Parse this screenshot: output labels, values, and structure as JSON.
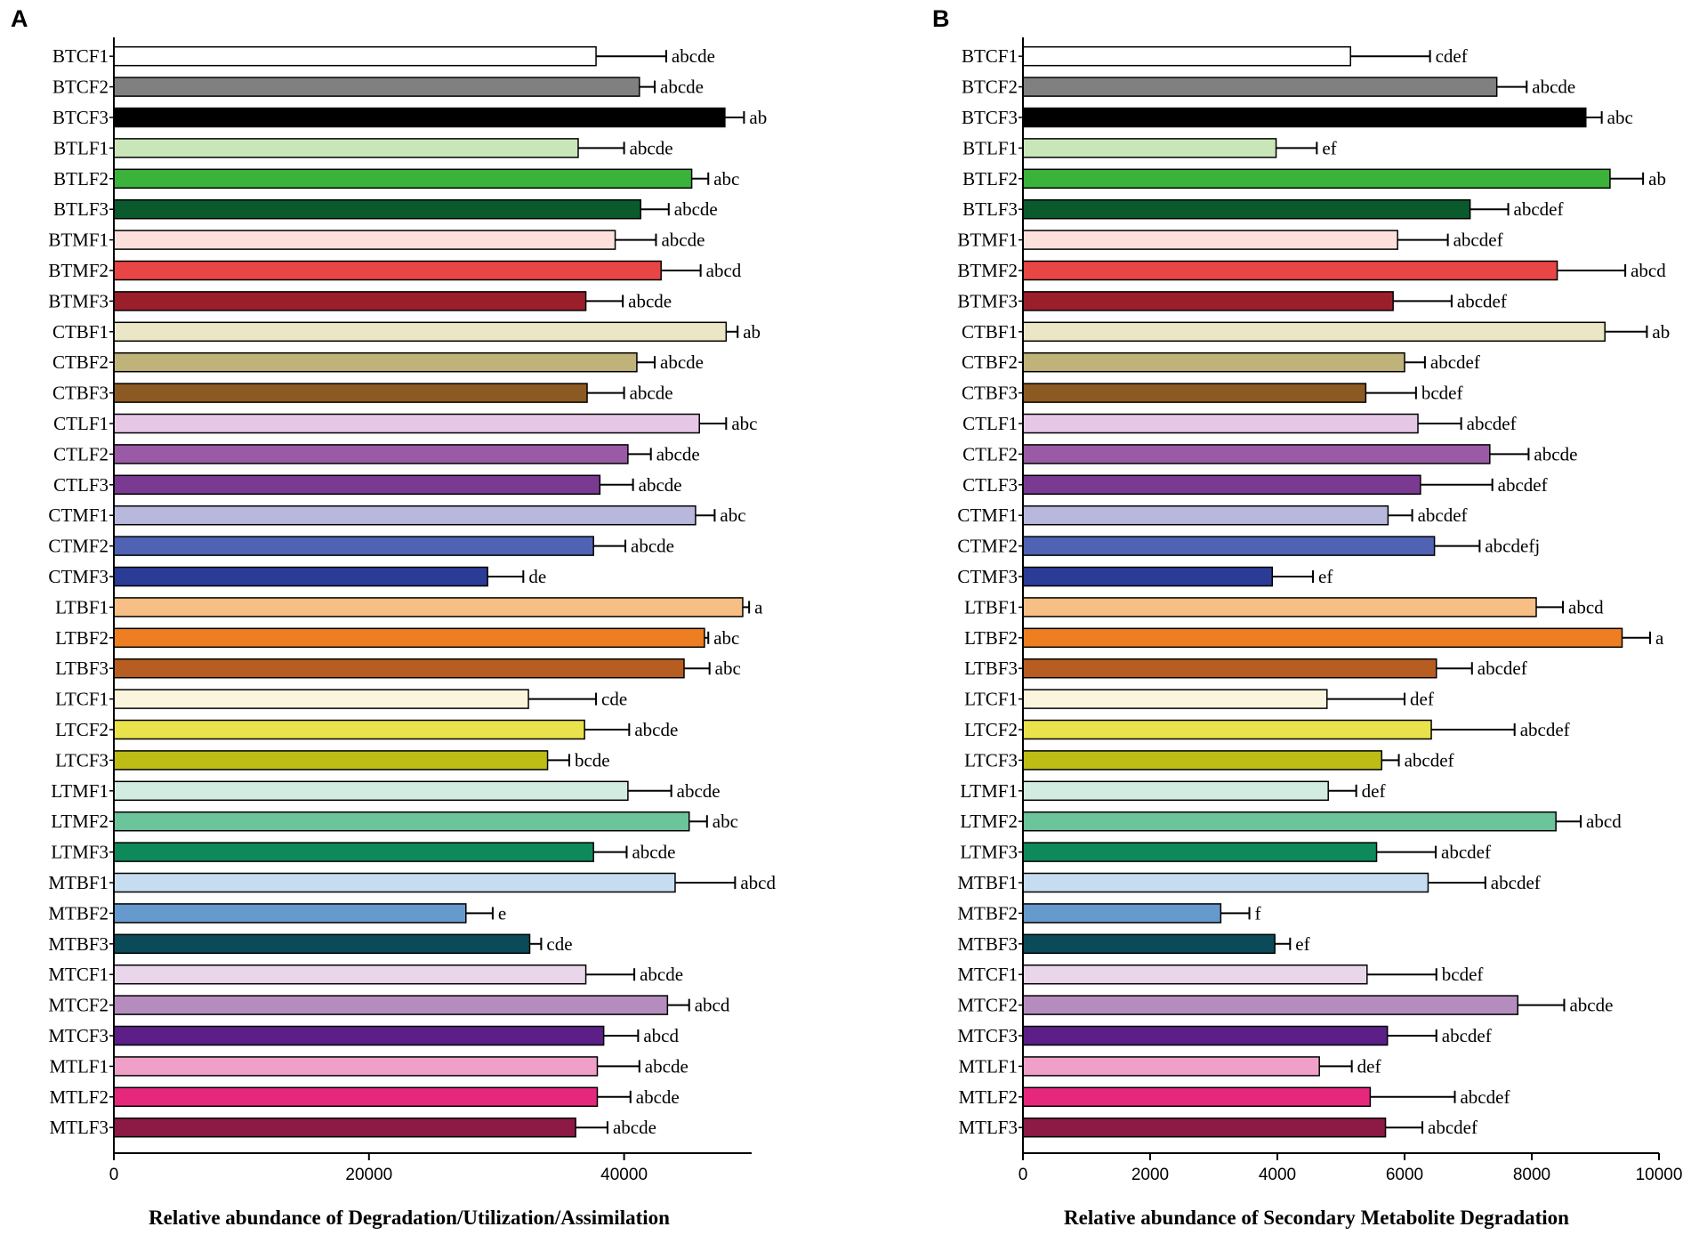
{
  "categories": [
    "BTCF1",
    "BTCF2",
    "BTCF3",
    "BTLF1",
    "BTLF2",
    "BTLF3",
    "BTMF1",
    "BTMF2",
    "BTMF3",
    "CTBF1",
    "CTBF2",
    "CTBF3",
    "CTLF1",
    "CTLF2",
    "CTLF3",
    "CTMF1",
    "CTMF2",
    "CTMF3",
    "LTBF1",
    "LTBF2",
    "LTBF3",
    "LTCF1",
    "LTCF2",
    "LTCF3",
    "LTMF1",
    "LTMF2",
    "LTMF3",
    "MTBF1",
    "MTBF2",
    "MTBF3",
    "MTCF1",
    "MTCF2",
    "MTCF3",
    "MTLF1",
    "MTLF2",
    "MTLF3"
  ],
  "colors": [
    "#ffffff",
    "#808080",
    "#000000",
    "#c8e6b8",
    "#3bb33b",
    "#0b5a2e",
    "#fde0dc",
    "#e84545",
    "#9a1f2b",
    "#ebe6c6",
    "#bfb37a",
    "#8b5a22",
    "#e6c8e6",
    "#9b5aa5",
    "#7b3a92",
    "#b8b8dc",
    "#5062b4",
    "#2a3c96",
    "#f7bf85",
    "#ee7e22",
    "#b85d21",
    "#faf5dc",
    "#e9e24a",
    "#bdbd15",
    "#d3ece2",
    "#6cc49a",
    "#0e8a5a",
    "#c6dcf0",
    "#6699cc",
    "#0b4a58",
    "#ead6ea",
    "#b48cbe",
    "#5c1f88",
    "#f0a0c8",
    "#e6287d",
    "#8c1a44"
  ],
  "chart_data": [
    {
      "type": "bar",
      "panel": "A",
      "orientation": "horizontal",
      "categories": [
        "BTCF1",
        "BTCF2",
        "BTCF3",
        "BTLF1",
        "BTLF2",
        "BTLF3",
        "BTMF1",
        "BTMF2",
        "BTMF3",
        "CTBF1",
        "CTBF2",
        "CTBF3",
        "CTLF1",
        "CTLF2",
        "CTLF3",
        "CTMF1",
        "CTMF2",
        "CTMF3",
        "LTBF1",
        "LTBF2",
        "LTBF3",
        "LTCF1",
        "LTCF2",
        "LTCF3",
        "LTMF1",
        "LTMF2",
        "LTMF3",
        "MTBF1",
        "MTBF2",
        "MTBF3",
        "MTCF1",
        "MTCF2",
        "MTCF3",
        "MTLF1",
        "MTLF2",
        "MTLF3"
      ],
      "values": [
        37800,
        41200,
        47900,
        36400,
        45300,
        41300,
        39300,
        42900,
        37000,
        48000,
        41000,
        37100,
        45900,
        40300,
        38100,
        45600,
        37600,
        29300,
        49300,
        46300,
        44700,
        32500,
        36900,
        34000,
        40300,
        45100,
        37600,
        44000,
        27600,
        32600,
        37000,
        43400,
        38400,
        37900,
        37900,
        36200
      ],
      "errors": [
        5500,
        1200,
        1500,
        3600,
        1300,
        2200,
        3200,
        3100,
        2900,
        900,
        1400,
        2900,
        2100,
        1800,
        2600,
        1500,
        2500,
        2800,
        500,
        300,
        2000,
        5300,
        3500,
        1700,
        3400,
        1400,
        2600,
        4700,
        2100,
        900,
        3800,
        1700,
        2700,
        3300,
        2600,
        2500
      ],
      "significance": [
        "abcde",
        "abcde",
        "ab",
        "abcde",
        "abc",
        "abcde",
        "abcde",
        "abcd",
        "abcde",
        "ab",
        "abcde",
        "abcde",
        "abc",
        "abcde",
        "abcde",
        "abc",
        "abcde",
        "de",
        "a",
        "abc",
        "abc",
        "cde",
        "abcde",
        "bcde",
        "abcde",
        "abc",
        "abcde",
        "abcd",
        "e",
        "cde",
        "abcde",
        "abcd",
        "abcd",
        "abcde",
        "abcde",
        "abcde"
      ],
      "xlim": [
        0,
        50000
      ],
      "xticks": [
        0,
        20000,
        40000
      ],
      "xticklabels": [
        "0",
        "20000",
        "40000"
      ],
      "xlabel": "Relative abundance of Degradation/Utilization/Assimilation"
    },
    {
      "type": "bar",
      "panel": "B",
      "orientation": "horizontal",
      "categories": [
        "BTCF1",
        "BTCF2",
        "BTCF3",
        "BTLF1",
        "BTLF2",
        "BTLF3",
        "BTMF1",
        "BTMF2",
        "BTMF3",
        "CTBF1",
        "CTBF2",
        "CTBF3",
        "CTLF1",
        "CTLF2",
        "CTLF3",
        "CTMF1",
        "CTMF2",
        "CTMF3",
        "LTBF1",
        "LTBF2",
        "LTBF3",
        "LTCF1",
        "LTCF2",
        "LTCF3",
        "LTMF1",
        "LTMF2",
        "LTMF3",
        "MTBF1",
        "MTBF2",
        "MTBF3",
        "MTCF1",
        "MTCF2",
        "MTCF3",
        "MTLF1",
        "MTLF2",
        "MTLF3"
      ],
      "values": [
        5150,
        7450,
        8850,
        3980,
        9230,
        7030,
        5890,
        8400,
        5820,
        9150,
        6000,
        5390,
        6210,
        7340,
        6250,
        5740,
        6470,
        3920,
        8070,
        9420,
        6500,
        4780,
        6420,
        5640,
        4800,
        8380,
        5560,
        6370,
        3110,
        3960,
        5410,
        7780,
        5730,
        4660,
        5460,
        5700
      ],
      "errors": [
        1250,
        470,
        250,
        640,
        520,
        600,
        790,
        1070,
        920,
        660,
        320,
        790,
        680,
        610,
        1130,
        380,
        710,
        640,
        420,
        440,
        560,
        1220,
        1310,
        270,
        440,
        390,
        930,
        900,
        450,
        240,
        1090,
        730,
        770,
        510,
        1330,
        580
      ],
      "significance": [
        "cdef",
        "abcde",
        "abc",
        "ef",
        "ab",
        "abcdef",
        "abcdef",
        "abcd",
        "abcdef",
        "ab",
        "abcdef",
        "bcdef",
        "abcdef",
        "abcde",
        "abcdef",
        "abcdef",
        "abcdefj",
        "ef",
        "abcd",
        "a",
        "abcdef",
        "def",
        "abcdef",
        "abcdef",
        "def",
        "abcd",
        "abcdef",
        "abcdef",
        "f",
        "ef",
        "bcdef",
        "abcde",
        "abcdef",
        "def",
        "abcdef",
        "abcdef"
      ],
      "xlim": [
        0,
        10000
      ],
      "xticks": [
        0,
        2000,
        4000,
        6000,
        8000,
        10000
      ],
      "xticklabels": [
        "0",
        "2000",
        "4000",
        "6000",
        "8000",
        "10000"
      ],
      "xlabel": "Relative abundance of Secondary Metabolite Degradation"
    }
  ]
}
